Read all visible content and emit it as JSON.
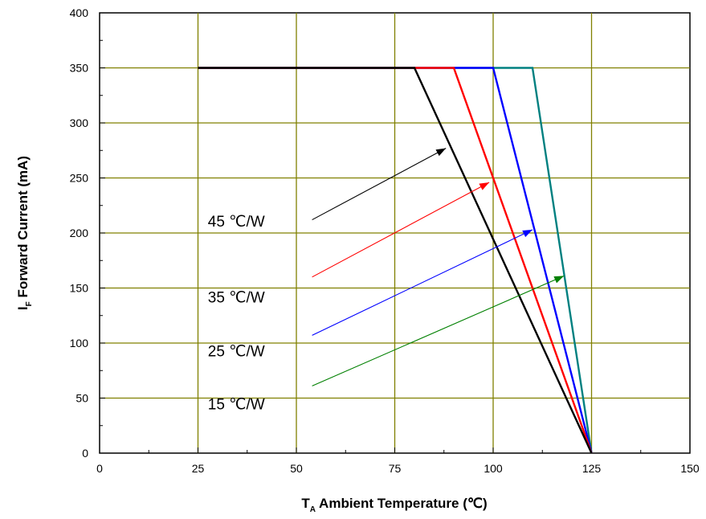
{
  "chart_data": {
    "type": "line",
    "title": "",
    "xlabel": {
      "main": "T",
      "sub": "A",
      "rest": " Ambient Temperature (℃)"
    },
    "ylabel": {
      "main": "I",
      "sub": "F",
      "rest": " Forward Current (mA)"
    },
    "xlim": [
      0,
      150
    ],
    "ylim": [
      0,
      400
    ],
    "x_ticks": [
      0,
      25,
      50,
      75,
      100,
      125,
      150
    ],
    "y_ticks": [
      0,
      50,
      100,
      150,
      200,
      250,
      300,
      350,
      400
    ],
    "grid": true,
    "series": [
      {
        "name": "45 ℃/W",
        "color": "#000000",
        "x": [
          25,
          80,
          125
        ],
        "y": [
          350,
          350,
          0
        ]
      },
      {
        "name": "35 ℃/W",
        "color": "#ff0000",
        "x": [
          25,
          90,
          125
        ],
        "y": [
          350,
          350,
          0
        ]
      },
      {
        "name": "25 ℃/W",
        "color": "#0000ff",
        "x": [
          25,
          100,
          125
        ],
        "y": [
          350,
          350,
          0
        ]
      },
      {
        "name": "15 ℃/W",
        "color": "#008080",
        "x": [
          25,
          110,
          125
        ],
        "y": [
          350,
          350,
          0
        ]
      }
    ],
    "annotations": [
      {
        "text": "45 ℃/W",
        "label_at": [
          27.5,
          211
        ],
        "arrow_from": [
          54,
          212
        ],
        "arrow_to": [
          88,
          277
        ],
        "color": "#000000"
      },
      {
        "text": "35 ℃/W",
        "label_at": [
          27.5,
          142
        ],
        "arrow_from": [
          54,
          160
        ],
        "arrow_to": [
          99,
          246
        ],
        "color": "#ff0000"
      },
      {
        "text": "25 ℃/W",
        "label_at": [
          27.5,
          93
        ],
        "arrow_from": [
          54,
          107
        ],
        "arrow_to": [
          110,
          203
        ],
        "color": "#0000ff"
      },
      {
        "text": "15 ℃/W",
        "label_at": [
          27.5,
          45
        ],
        "arrow_from": [
          54,
          61
        ],
        "arrow_to": [
          118,
          161
        ],
        "color": "#008000"
      }
    ],
    "colors": {
      "grid": "#808000",
      "axis": "#000000",
      "plot_bg": "#ffffff"
    }
  }
}
